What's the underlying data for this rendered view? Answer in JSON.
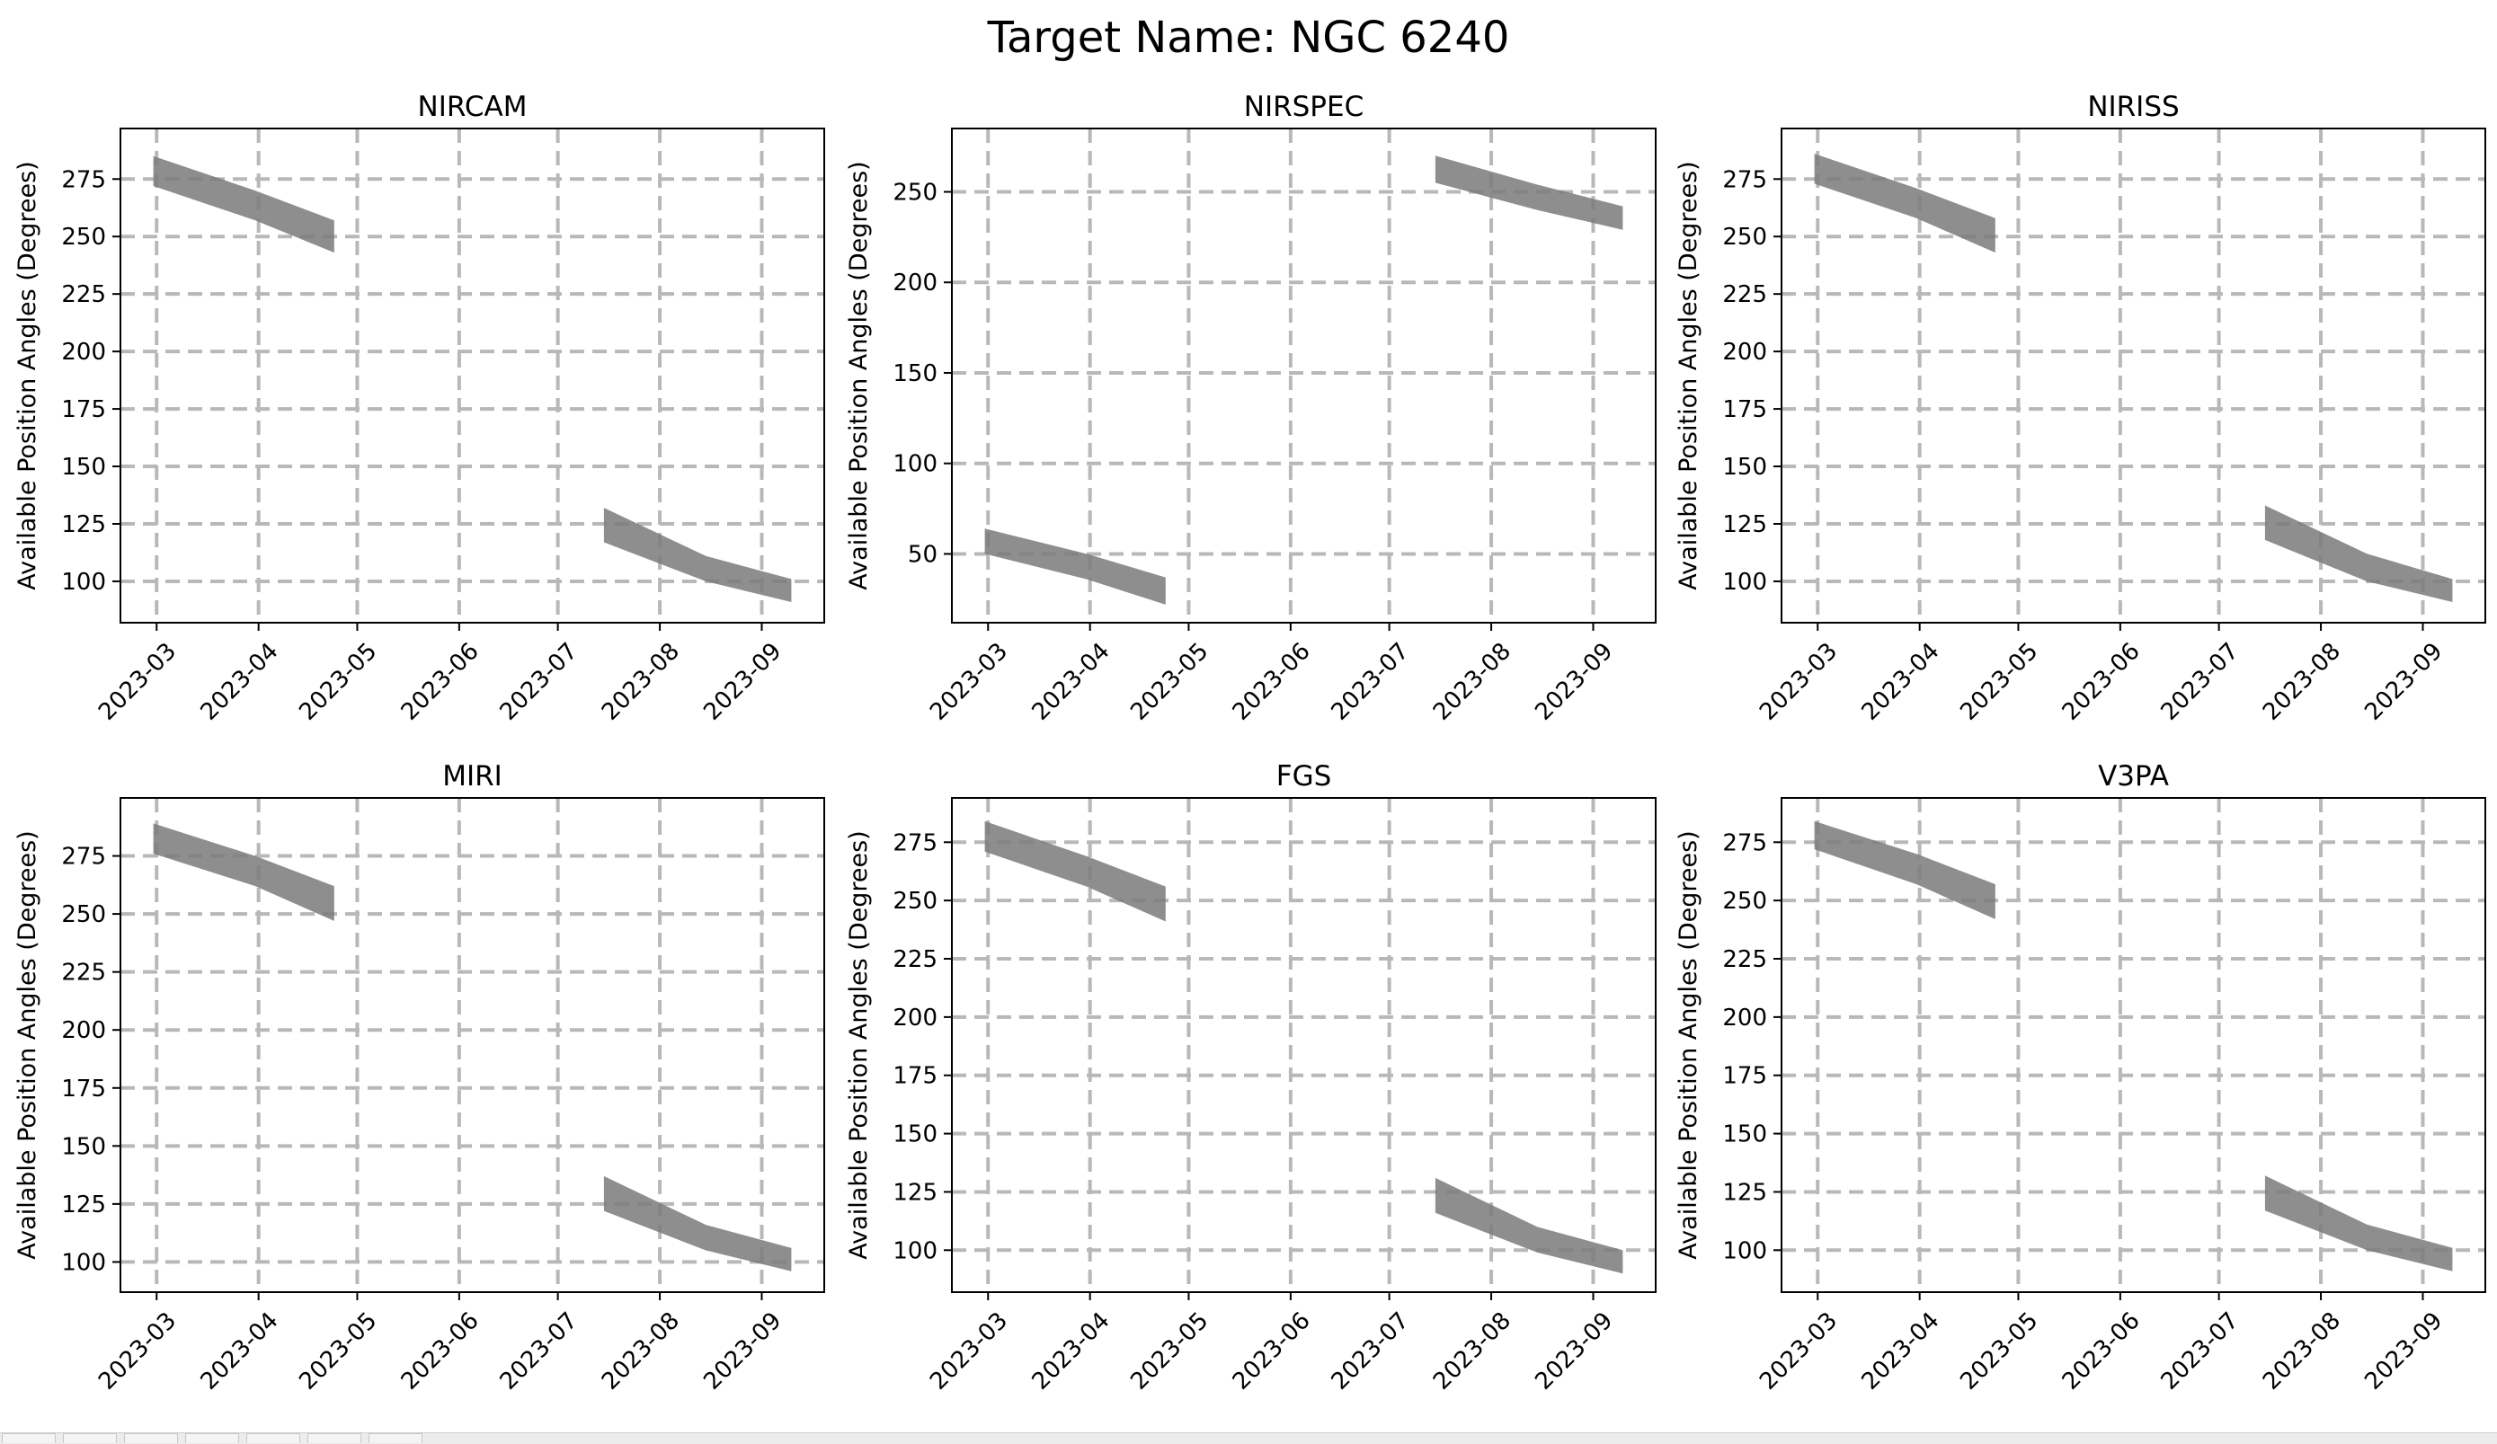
{
  "figure": {
    "title": "Target Name: NGC 6240"
  },
  "colors": {
    "band": "#7a7a7a",
    "grid": "#b8b8b8",
    "axis": "#000000",
    "text": "#000000",
    "background": "#ffffff"
  },
  "toolbar": {
    "buttons": [
      "home-icon",
      "back-icon",
      "forward-icon",
      "pan-icon",
      "zoom-icon",
      "configure-icon",
      "save-icon"
    ]
  },
  "chart_data": [
    {
      "type": "area",
      "title": "NIRCAM",
      "ylabel": "Available Position Angles (Degrees)",
      "xlim": [
        "2023-02-18",
        "2023-09-20"
      ],
      "ylim": [
        82,
        297
      ],
      "yticks": [
        100,
        125,
        150,
        175,
        200,
        225,
        250,
        275
      ],
      "xticks": [
        "2023-03",
        "2023-04",
        "2023-05",
        "2023-06",
        "2023-07",
        "2023-08",
        "2023-09"
      ],
      "grid": true,
      "bands": [
        {
          "x": [
            "2023-02-28",
            "2023-03-31",
            "2023-04-24"
          ],
          "upper": [
            285,
            270,
            257
          ],
          "lower": [
            272,
            257,
            243
          ]
        },
        {
          "x": [
            "2023-07-15",
            "2023-08-15",
            "2023-09-10"
          ],
          "upper": [
            132,
            111,
            101
          ],
          "lower": [
            117,
            100,
            91
          ]
        }
      ]
    },
    {
      "type": "area",
      "title": "NIRSPEC",
      "ylabel": "Available Position Angles (Degrees)",
      "xlim": [
        "2023-02-18",
        "2023-09-20"
      ],
      "ylim": [
        12,
        285
      ],
      "yticks": [
        50,
        100,
        150,
        200,
        250
      ],
      "xticks": [
        "2023-03",
        "2023-04",
        "2023-05",
        "2023-06",
        "2023-07",
        "2023-08",
        "2023-09"
      ],
      "grid": true,
      "bands": [
        {
          "x": [
            "2023-02-28",
            "2023-03-31",
            "2023-04-24"
          ],
          "upper": [
            64,
            50,
            37
          ],
          "lower": [
            50,
            36,
            22
          ]
        },
        {
          "x": [
            "2023-07-15",
            "2023-08-15",
            "2023-09-10"
          ],
          "upper": [
            270,
            254,
            242
          ],
          "lower": [
            255,
            240,
            229
          ]
        }
      ]
    },
    {
      "type": "area",
      "title": "NIRISS",
      "ylabel": "Available Position Angles (Degrees)",
      "xlim": [
        "2023-02-18",
        "2023-09-20"
      ],
      "ylim": [
        82,
        297
      ],
      "yticks": [
        100,
        125,
        150,
        175,
        200,
        225,
        250,
        275
      ],
      "xticks": [
        "2023-03",
        "2023-04",
        "2023-05",
        "2023-06",
        "2023-07",
        "2023-08",
        "2023-09"
      ],
      "grid": true,
      "bands": [
        {
          "x": [
            "2023-02-28",
            "2023-03-31",
            "2023-04-24"
          ],
          "upper": [
            286,
            271,
            258
          ],
          "lower": [
            273,
            258,
            243
          ]
        },
        {
          "x": [
            "2023-07-15",
            "2023-08-15",
            "2023-09-10"
          ],
          "upper": [
            133,
            112,
            101
          ],
          "lower": [
            118,
            100,
            91
          ]
        }
      ]
    },
    {
      "type": "area",
      "title": "MIRI",
      "ylabel": "Available Position Angles (Degrees)",
      "xlim": [
        "2023-02-18",
        "2023-09-20"
      ],
      "ylim": [
        87,
        300
      ],
      "yticks": [
        100,
        125,
        150,
        175,
        200,
        225,
        250,
        275
      ],
      "xticks": [
        "2023-03",
        "2023-04",
        "2023-05",
        "2023-06",
        "2023-07",
        "2023-08",
        "2023-09"
      ],
      "grid": true,
      "bands": [
        {
          "x": [
            "2023-02-28",
            "2023-03-31",
            "2023-04-24"
          ],
          "upper": [
            289,
            275,
            262
          ],
          "lower": [
            276,
            262,
            247
          ]
        },
        {
          "x": [
            "2023-07-15",
            "2023-08-15",
            "2023-09-10"
          ],
          "upper": [
            137,
            116,
            106
          ],
          "lower": [
            122,
            105,
            96
          ]
        }
      ]
    },
    {
      "type": "area",
      "title": "FGS",
      "ylabel": "Available Position Angles (Degrees)",
      "xlim": [
        "2023-02-18",
        "2023-09-20"
      ],
      "ylim": [
        82,
        294
      ],
      "yticks": [
        100,
        125,
        150,
        175,
        200,
        225,
        250,
        275
      ],
      "xticks": [
        "2023-03",
        "2023-04",
        "2023-05",
        "2023-06",
        "2023-07",
        "2023-08",
        "2023-09"
      ],
      "grid": true,
      "bands": [
        {
          "x": [
            "2023-02-28",
            "2023-03-31",
            "2023-04-24"
          ],
          "upper": [
            284,
            269,
            256
          ],
          "lower": [
            271,
            256,
            241
          ]
        },
        {
          "x": [
            "2023-07-15",
            "2023-08-15",
            "2023-09-10"
          ],
          "upper": [
            131,
            110,
            100
          ],
          "lower": [
            116,
            99,
            90
          ]
        }
      ]
    },
    {
      "type": "area",
      "title": "V3PA",
      "ylabel": "Available Position Angles (Degrees)",
      "xlim": [
        "2023-02-18",
        "2023-09-20"
      ],
      "ylim": [
        82,
        294
      ],
      "yticks": [
        100,
        125,
        150,
        175,
        200,
        225,
        250,
        275
      ],
      "xticks": [
        "2023-03",
        "2023-04",
        "2023-05",
        "2023-06",
        "2023-07",
        "2023-08",
        "2023-09"
      ],
      "grid": true,
      "bands": [
        {
          "x": [
            "2023-02-28",
            "2023-03-31",
            "2023-04-24"
          ],
          "upper": [
            284,
            270,
            257
          ],
          "lower": [
            272,
            257,
            242
          ]
        },
        {
          "x": [
            "2023-07-15",
            "2023-08-15",
            "2023-09-10"
          ],
          "upper": [
            132,
            111,
            101
          ],
          "lower": [
            117,
            100,
            91
          ]
        }
      ]
    }
  ]
}
